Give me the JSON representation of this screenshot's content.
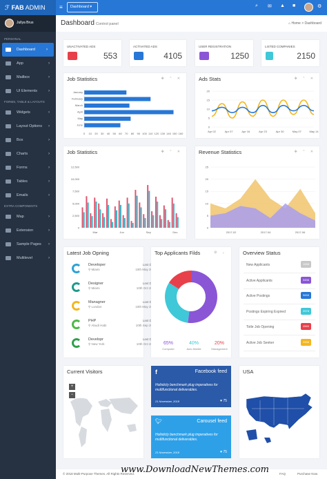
{
  "brand": {
    "prefix": "FAB",
    "suffix": " ADMIN"
  },
  "topbar": {
    "dashboard_select": "Dashboard ▾"
  },
  "sidebar": {
    "user": "Jullya Brus",
    "sec_personal": "PERSONAL",
    "sec_forms": "FORMS, TABLE & LAYOUTS",
    "sec_extra": "EXTRA COMPONENTS",
    "items_personal": [
      "Dashboard",
      "App",
      "Mailbox",
      "UI Elements"
    ],
    "items_forms": [
      "Widgets",
      "Layout Options",
      "Box",
      "Charts",
      "Forms",
      "Tables",
      "Emails"
    ],
    "items_extra": [
      "Map",
      "Extension",
      "Sample Pages",
      "Multilevel"
    ]
  },
  "header": {
    "title": "Dashboard",
    "subtitle": "Control panel",
    "crumb_home": "Home",
    "crumb_current": "Dashboard"
  },
  "kpis": [
    {
      "label": "UNACTIVATED ADS",
      "value": "553",
      "color": "#e8404a"
    },
    {
      "label": "ACTIVATED ADS",
      "value": "4105",
      "color": "#2777d6"
    },
    {
      "label": "USER REGISTRATION",
      "value": "1250",
      "color": "#8a56d6"
    },
    {
      "label": "LISTED COMPANIES",
      "value": "2150",
      "color": "#3fc8d8"
    }
  ],
  "job_stats_bar": {
    "title": "Job Statistics",
    "chart_data": {
      "type": "bar",
      "orientation": "horizontal",
      "categories": [
        "January",
        "February",
        "March",
        "April",
        "May",
        "June"
      ],
      "values": [
        70,
        110,
        75,
        148,
        77,
        60
      ],
      "xlim": [
        0,
        160
      ],
      "ticks": [
        "0",
        "10",
        "20",
        "30",
        "40",
        "50",
        "60",
        "70",
        "80",
        "90",
        "100",
        "110",
        "120",
        "130",
        "140",
        "150",
        "160"
      ]
    }
  },
  "ads_stats": {
    "title": "Ads Stats",
    "chart_data": {
      "type": "line",
      "x": [
        "Apr 02",
        "Apr 06",
        "Apr 10",
        "Apr 14",
        "Apr 18",
        "Apr 22",
        "Apr 26",
        "Apr 30",
        "May 04",
        "May 08",
        "May 14"
      ],
      "x_ticks": [
        "Apr 02",
        "Apr 07",
        "Apr 16",
        "Apr 23",
        "Apr 30",
        "May 07",
        "May 14"
      ],
      "ylim": [
        0,
        20
      ],
      "y_ticks": [
        "0",
        "5",
        "10",
        "15",
        "20"
      ],
      "series": [
        {
          "values": [
            6,
            13,
            5,
            14,
            6,
            15,
            6,
            15,
            7,
            15,
            7
          ],
          "color": "#f2b61f"
        },
        {
          "values": [
            9,
            11,
            8,
            11,
            8,
            12,
            8,
            12,
            9,
            12,
            9
          ],
          "color": "#2777d6"
        }
      ]
    }
  },
  "job_stats_col": {
    "title": "Job Statistics",
    "chart_data": {
      "type": "bar",
      "x_ticks": [
        "Mar",
        "Jun",
        "Sep",
        "Dec"
      ],
      "y_ticks": [
        "0",
        "2,500",
        "5,000",
        "7,500",
        "10,000",
        "12,500"
      ],
      "ylim": [
        0,
        12500
      ],
      "series": [
        {
          "color": "#e0556f",
          "values": [
            4200,
            6500,
            3000,
            6200,
            5000,
            3000,
            6000,
            1800,
            4400,
            5600,
            2600,
            6200,
            1400,
            7800,
            5200,
            2800,
            8800,
            3400,
            6400,
            2600,
            4600,
            1600,
            6200,
            3000
          ]
        },
        {
          "color": "#3ab4c8",
          "values": [
            3200,
            5200,
            2400,
            5400,
            3800,
            2200,
            4700,
            1200,
            3600,
            4700,
            2000,
            5000,
            1000,
            6600,
            4200,
            2000,
            7600,
            2600,
            5400,
            1800,
            3800,
            1200,
            5000,
            2200
          ]
        }
      ]
    }
  },
  "revenue": {
    "title": "Revenue Statistics",
    "chart_data": {
      "type": "area",
      "x_ticks": [
        "2017-02",
        "2017-04",
        "2017-06"
      ],
      "y_ticks": [
        "0",
        "5",
        "10",
        "15",
        "20",
        "25"
      ],
      "ylim": [
        0,
        25
      ],
      "series": [
        {
          "color": "#f0c46c",
          "values": [
            10,
            8,
            12,
            20,
            12,
            8,
            16,
            6
          ]
        },
        {
          "color": "#a99ef0",
          "values": [
            5,
            6,
            9,
            8,
            4,
            10,
            6,
            3
          ]
        }
      ]
    }
  },
  "latest_jobs": {
    "title": "Latest Job Opning",
    "deadline_label": "Last Date",
    "items": [
      {
        "role": "Developer",
        "loc": "Miami",
        "date": "10th May 2018",
        "color": "#2da1d6"
      },
      {
        "role": "Designer",
        "loc": "Miami",
        "date": "10th Oct 2018",
        "color": "#1f9a8a"
      },
      {
        "role": "Managner",
        "loc": "London",
        "date": "10th May 2018",
        "color": "#f2b61f"
      },
      {
        "role": "PHP",
        "loc": "Abudi Habi",
        "date": "10th Sep 2018",
        "color": "#4cb848"
      },
      {
        "role": "Developr",
        "loc": "New York",
        "date": "10th Oct 2018",
        "color": "#2ea04b"
      }
    ]
  },
  "applicants": {
    "title": "Top Applicants Filds",
    "chart_data": {
      "type": "pie",
      "labels": [
        "Computer",
        "Auto Mobile",
        "Management"
      ],
      "values": [
        65,
        40,
        20
      ],
      "colors": [
        "#8a56d6",
        "#3fc8d8",
        "#e8404a"
      ]
    },
    "stats": [
      {
        "value": "65%",
        "label": "Computer",
        "color": "#8a56d6"
      },
      {
        "value": "40%",
        "label": "Auto Mobile",
        "color": "#3fc8d8"
      },
      {
        "value": "20%",
        "label": "Management",
        "color": "#e8404a"
      }
    ]
  },
  "overview": {
    "title": "Overview Status",
    "rows": [
      {
        "label": "New Applicants",
        "value": "1058",
        "color": "#c8c8c8"
      },
      {
        "label": "Active Applicants",
        "value": "3456",
        "color": "#8a56d6"
      },
      {
        "label": "Active Postings",
        "value": "9655",
        "color": "#2777d6"
      },
      {
        "label": "Postings Expiring Expired",
        "value": "2578",
        "color": "#3fc8d8"
      },
      {
        "label": "Totle Job Opening",
        "value": "4560",
        "color": "#e8404a"
      },
      {
        "label": "Active Job Seeker",
        "value": "2556",
        "color": "#f2b61f"
      }
    ]
  },
  "visitors": {
    "title": "Current Visitors",
    "zoom_in": "+",
    "zoom_out": "−"
  },
  "facebook": {
    "title": "Facebook feed",
    "text": "Holisticly benchmark plug imperatives for multifunctional deliverables.",
    "date": "21 November, 2018",
    "likes": "75",
    "color": "#2a5aa8"
  },
  "carousel": {
    "title": "Carousel feed",
    "text": "Holisticly benchmark plug imperatives for multifunctional deliverables.",
    "date": "21 November, 2018",
    "likes": "75",
    "color": "#2ea0e8"
  },
  "usa": {
    "title": "USA"
  },
  "footer": {
    "copyright": "© 2018 Multi-Purpose Themes. All Rights Reserved.",
    "faq": "FAQ",
    "purchase": "Purchase Now"
  },
  "watermark": "www.DownloadNewThemes.com"
}
